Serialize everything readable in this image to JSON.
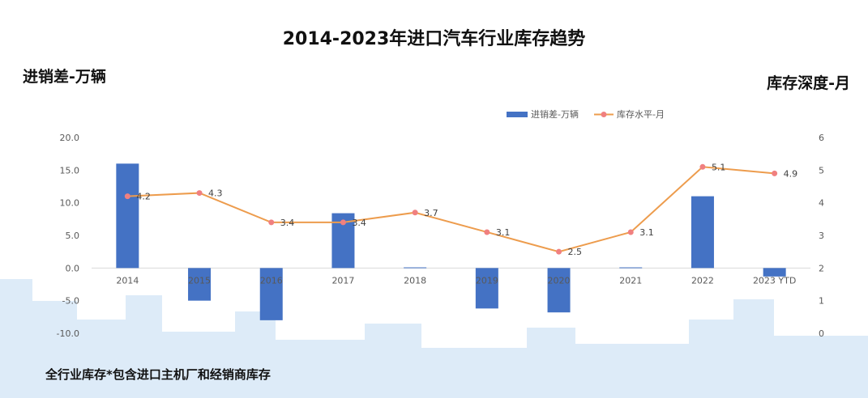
{
  "title": "2014-2023年进口汽车行业库存趋势",
  "left_axis_title": "进销差-万辆",
  "right_axis_title": "库存深度-月",
  "footnote": "全行业库存*包含进口主机厂和经销商库存",
  "colors": {
    "bar": "#4472C4",
    "line": "#ED9C4D",
    "marker": "#F08080",
    "background_skyline": "#DDEBF8"
  },
  "chart_data": {
    "type": "bar",
    "categories": [
      "2014",
      "2015",
      "2016",
      "2017",
      "2018",
      "2019",
      "2020",
      "2021",
      "2022",
      "2023 YTD"
    ],
    "series": [
      {
        "name": "进销差-万辆",
        "type": "bar",
        "axis": "left",
        "values": [
          16.0,
          -5.0,
          -8.0,
          8.4,
          0.1,
          -6.2,
          -6.8,
          0.1,
          11.0,
          -1.3
        ]
      },
      {
        "name": "库存水平-月",
        "type": "line",
        "axis": "right",
        "values": [
          4.2,
          4.3,
          3.4,
          3.4,
          3.7,
          3.1,
          2.5,
          3.1,
          5.1,
          4.9
        ],
        "labels": [
          "4.2",
          "4.3",
          "3.4",
          "3.4",
          "3.7",
          "3.1",
          "2.5",
          "3.1",
          "5.1",
          "4.9"
        ]
      }
    ],
    "left_ylim": [
      -10,
      20
    ],
    "left_ticks": [
      "20.0",
      "15.0",
      "10.0",
      "5.0",
      "0.0",
      "-5.0",
      "-10.0"
    ],
    "right_ylim": [
      0,
      6
    ],
    "right_ticks": [
      "6",
      "5",
      "4",
      "3",
      "2",
      "1",
      "0"
    ],
    "legend_position": "top-right",
    "grid": false
  }
}
